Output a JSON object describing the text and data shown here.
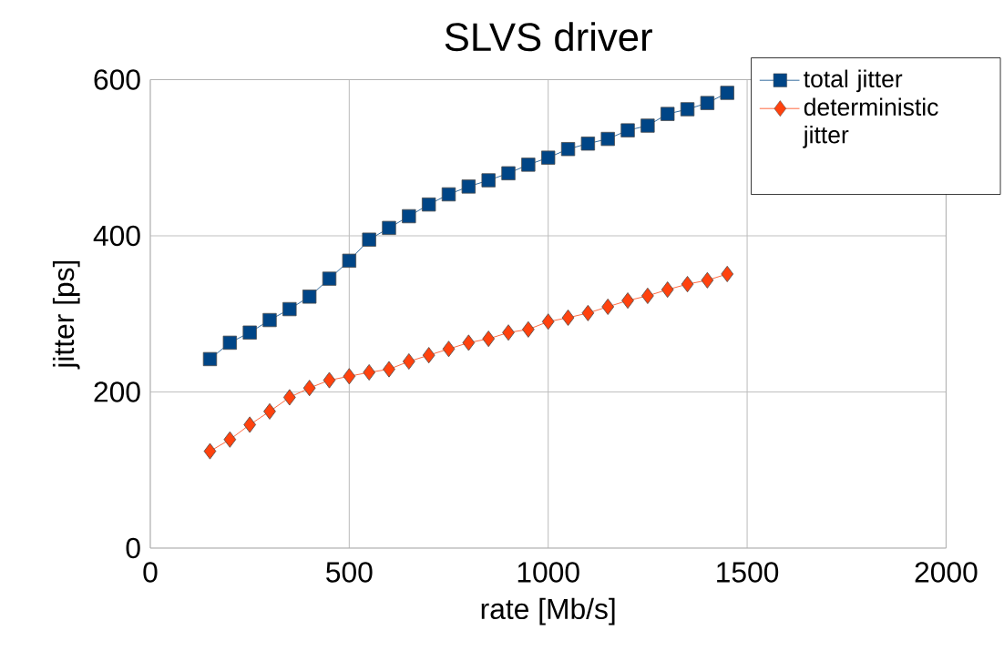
{
  "chart_data": {
    "type": "line",
    "title": "SLVS driver",
    "xlabel": "rate [Mb/s]",
    "ylabel": "jitter [ps]",
    "x": [
      150,
      200,
      250,
      300,
      350,
      400,
      450,
      500,
      550,
      600,
      650,
      700,
      750,
      800,
      850,
      900,
      950,
      1000,
      1050,
      1100,
      1150,
      1200,
      1250,
      1300,
      1350,
      1400,
      1450
    ],
    "series": [
      {
        "name": "total jitter",
        "color": "#004586",
        "marker": "square",
        "values": [
          242,
          263,
          276,
          292,
          306,
          322,
          345,
          368,
          395,
          410,
          425,
          440,
          453,
          463,
          471,
          480,
          491,
          500,
          511,
          518,
          524,
          535,
          541,
          556,
          562,
          570,
          583
        ]
      },
      {
        "name": "deterministic jitter",
        "color": "#ff420e",
        "marker": "diamond",
        "values": [
          124,
          139,
          158,
          175,
          193,
          205,
          215,
          220,
          225,
          229,
          239,
          247,
          255,
          263,
          268,
          276,
          280,
          290,
          295,
          301,
          309,
          317,
          323,
          331,
          338,
          343,
          351
        ]
      }
    ],
    "xlim": [
      0,
      2000
    ],
    "xticks": [
      0,
      500,
      1000,
      1500,
      2000
    ],
    "ylim": [
      0,
      600
    ],
    "yticks": [
      0,
      200,
      400,
      600
    ],
    "grid": true,
    "legend": "top right",
    "line_style": "solid"
  }
}
